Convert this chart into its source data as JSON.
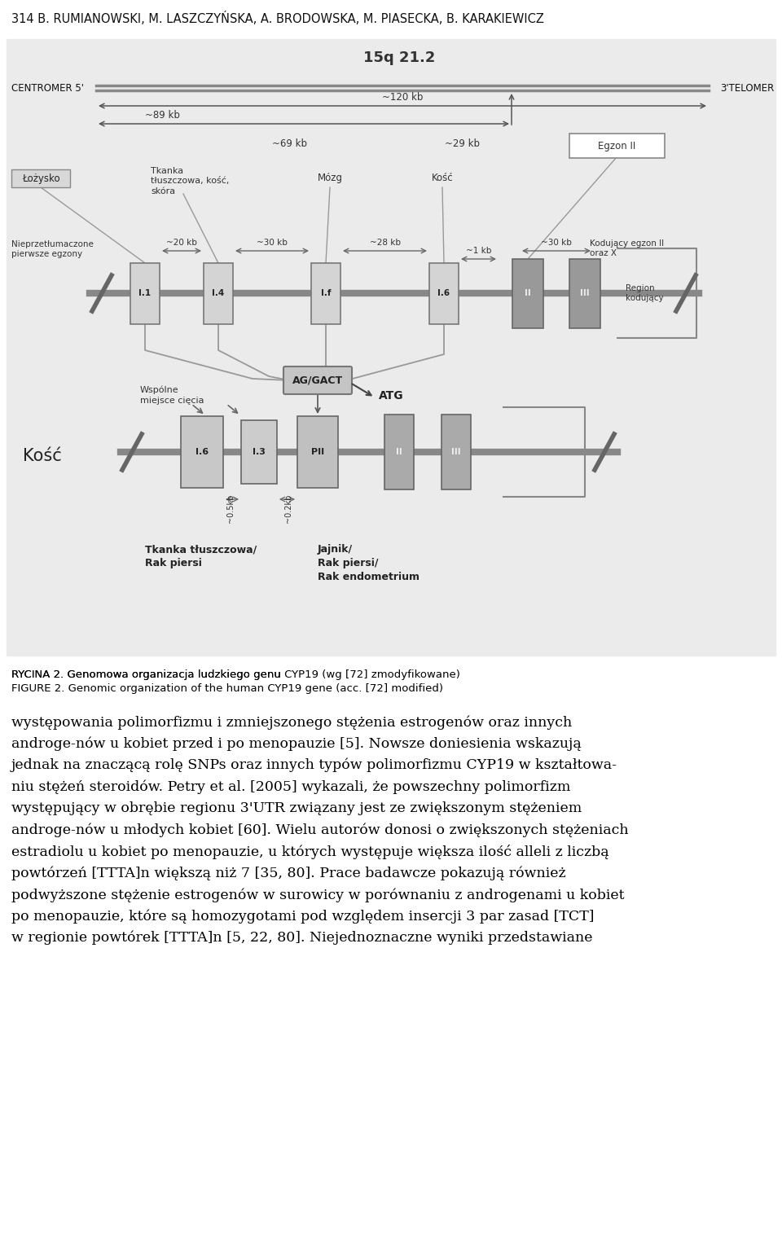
{
  "header": "314 B. RUMIANOWSKI, M. LASZCZYŃSKA, A. BRODOWSKA, M. PIASECKA, B. KARAKIEWICZ",
  "fig_bg": "#ebebeb",
  "gray_dark": "#707070",
  "gray_med": "#999999",
  "gray_light": "#cccccc",
  "gray_box": "#bbbbbb",
  "gray_exon": "#aaaaaa",
  "white": "#ffffff",
  "black": "#111111",
  "caption1_normal": "RYCINA 2. Genomowa organizacja ludzkiego genu ",
  "caption1_italic": "CYP19",
  "caption1_end": " (wg [72] zmodyfikowane)",
  "caption2_normal": "FIGURE 2. Genomic organization of the human ",
  "caption2_italic": "CYP19",
  "caption2_end": " gene (acc. [72] modified)",
  "body_lines": [
    "występowania polimorfizmu i zmniejszonego stężenia estrogenów oraz innych",
    "androge-nów u kobiet przed i po menopauzie [5]. Nowsze doniesienia wskazują",
    "jednak na znaczącą rolę SNPs oraz innych typów polimorfizmu CYP19 w kształtowa-",
    "niu stężeń steroidów. Petry et al. [2005] wykazali, że powszechny polimorfizm",
    "występujący w obrębie regionu 3'UTR związany jest ze zwiększonym stężeniem",
    "androge-nów u młodych kobiet [60]. Wielu autorów donosi o zwiększonych stężeniach",
    "estradiolu u kobiet po menopauzie, u których występuje większa ilość alleli z liczbą",
    "powtórzeń [TTTA]n większą niż 7 [35, 80]. Prace badawcze pokazują również",
    "podwyższone stężenie estrogenów w surowicy w porównaniu z androgenami u kobiet",
    "po menopauzie, które są homozygotami pod względem insercji 3 par zasad [TCT]",
    "w regionie powtórek [TTTA]n [5, 22, 80]. Niejednoznaczne wyniki przedstawiane"
  ]
}
